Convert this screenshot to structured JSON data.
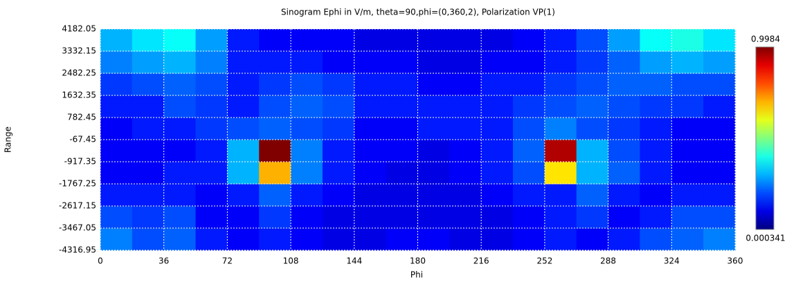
{
  "chart_data": {
    "type": "heatmap",
    "title": "Sinogram Ephi in V/m, theta=90,phi=(0,360,2), Polarization VP(1)",
    "x_label": "Phi",
    "y_label": "Range",
    "xlim": [
      0,
      360
    ],
    "xticks": [
      0,
      36,
      72,
      108,
      144,
      180,
      216,
      252,
      288,
      324,
      360
    ],
    "ylim": [
      -4316.95,
      4182.05
    ],
    "yticks": [
      -4316.95,
      -3467.05,
      -2617.15,
      -1767.25,
      -917.35,
      -67.45,
      782.45,
      1632.35,
      2482.25,
      3332.15,
      4182.05
    ],
    "zlim": [
      0.000341,
      0.9984
    ],
    "colormap": "jet",
    "grid": true,
    "z": [
      [
        0.25,
        0.2,
        0.22,
        0.15,
        0.12,
        0.15,
        0.12,
        0.1,
        0.1,
        0.12,
        0.12,
        0.1,
        0.1,
        0.12,
        0.15,
        0.12,
        0.15,
        0.2,
        0.22,
        0.25
      ],
      [
        0.2,
        0.18,
        0.2,
        0.12,
        0.12,
        0.18,
        0.12,
        0.1,
        0.1,
        0.1,
        0.1,
        0.1,
        0.1,
        0.12,
        0.15,
        0.18,
        0.12,
        0.15,
        0.2,
        0.2
      ],
      [
        0.15,
        0.15,
        0.15,
        0.12,
        0.15,
        0.22,
        0.15,
        0.12,
        0.1,
        0.1,
        0.1,
        0.1,
        0.12,
        0.15,
        0.15,
        0.22,
        0.15,
        0.12,
        0.15,
        0.15
      ],
      [
        0.12,
        0.12,
        0.15,
        0.15,
        0.3,
        0.7,
        0.25,
        0.15,
        0.12,
        0.1,
        0.1,
        0.12,
        0.15,
        0.2,
        0.65,
        0.3,
        0.22,
        0.15,
        0.12,
        0.12
      ],
      [
        0.12,
        0.12,
        0.12,
        0.15,
        0.3,
        0.9984,
        0.25,
        0.15,
        0.12,
        0.12,
        0.1,
        0.12,
        0.15,
        0.22,
        0.95,
        0.3,
        0.2,
        0.15,
        0.12,
        0.12
      ],
      [
        0.12,
        0.15,
        0.15,
        0.18,
        0.2,
        0.22,
        0.2,
        0.18,
        0.12,
        0.12,
        0.15,
        0.15,
        0.15,
        0.2,
        0.25,
        0.2,
        0.18,
        0.15,
        0.12,
        0.12
      ],
      [
        0.15,
        0.15,
        0.2,
        0.18,
        0.15,
        0.2,
        0.22,
        0.2,
        0.15,
        0.15,
        0.15,
        0.15,
        0.15,
        0.18,
        0.2,
        0.22,
        0.2,
        0.18,
        0.18,
        0.15
      ],
      [
        0.18,
        0.2,
        0.22,
        0.2,
        0.15,
        0.18,
        0.2,
        0.18,
        0.15,
        0.15,
        0.12,
        0.12,
        0.15,
        0.15,
        0.18,
        0.2,
        0.22,
        0.22,
        0.2,
        0.2
      ],
      [
        0.25,
        0.28,
        0.3,
        0.25,
        0.15,
        0.15,
        0.15,
        0.12,
        0.12,
        0.12,
        0.1,
        0.1,
        0.12,
        0.12,
        0.15,
        0.18,
        0.22,
        0.28,
        0.3,
        0.28
      ],
      [
        0.3,
        0.35,
        0.38,
        0.28,
        0.15,
        0.12,
        0.12,
        0.12,
        0.1,
        0.1,
        0.1,
        0.1,
        0.1,
        0.12,
        0.15,
        0.2,
        0.28,
        0.38,
        0.4,
        0.35
      ]
    ]
  }
}
